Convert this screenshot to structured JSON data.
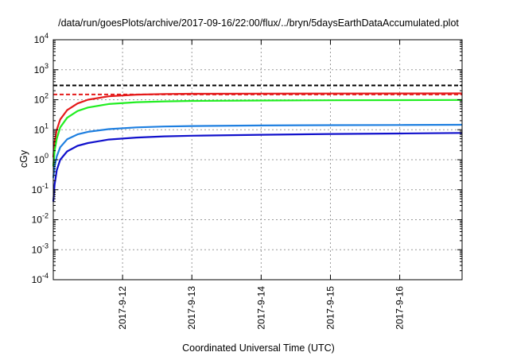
{
  "chart_data": {
    "type": "line",
    "title": "/data/run/goesPlots/archive/2017-09-16/22:00/flux/../bryn/5daysEarthDataAccumulated.plot",
    "xlabel": "Coordinated Universal Time (UTC)",
    "ylabel": "cGy",
    "yscale": "log",
    "ylim": [
      0.0001,
      10000
    ],
    "xlim": [
      0,
      5.9
    ],
    "x_unit": "days after 2017-09-11 00:00 UTC",
    "x_ticks": [
      {
        "x": 1,
        "label": "2017-9-12"
      },
      {
        "x": 2,
        "label": "2017-9-13"
      },
      {
        "x": 3,
        "label": "2017-9-14"
      },
      {
        "x": 4,
        "label": "2017-9-15"
      },
      {
        "x": 5,
        "label": "2017-9-16"
      }
    ],
    "y_ticks": [
      {
        "value": 0.0001,
        "base": "10",
        "exp": "-4"
      },
      {
        "value": 0.001,
        "base": "10",
        "exp": "-3"
      },
      {
        "value": 0.01,
        "base": "10",
        "exp": "-2"
      },
      {
        "value": 0.1,
        "base": "10",
        "exp": "-1"
      },
      {
        "value": 1,
        "base": "10",
        "exp": "0"
      },
      {
        "value": 10,
        "base": "10",
        "exp": "1"
      },
      {
        "value": 100,
        "base": "10",
        "exp": "2"
      },
      {
        "value": 1000,
        "base": "10",
        "exp": "3"
      },
      {
        "value": 10000,
        "base": "10",
        "exp": "4"
      }
    ],
    "grid": true,
    "series": [
      {
        "color": "#e41a1a",
        "points": [
          [
            0,
            1.2
          ],
          [
            0.02,
            4
          ],
          [
            0.05,
            10
          ],
          [
            0.1,
            22
          ],
          [
            0.2,
            45
          ],
          [
            0.35,
            75
          ],
          [
            0.5,
            100
          ],
          [
            0.8,
            130
          ],
          [
            1.2,
            148
          ],
          [
            1.6,
            155
          ],
          [
            2,
            158
          ],
          [
            3,
            160
          ],
          [
            4,
            161
          ],
          [
            5,
            162
          ],
          [
            5.9,
            163
          ]
        ]
      },
      {
        "color": "#22ee22",
        "points": [
          [
            0,
            0.6
          ],
          [
            0.02,
            2
          ],
          [
            0.05,
            5
          ],
          [
            0.1,
            12
          ],
          [
            0.2,
            25
          ],
          [
            0.35,
            42
          ],
          [
            0.5,
            55
          ],
          [
            0.8,
            72
          ],
          [
            1.2,
            83
          ],
          [
            1.6,
            88
          ],
          [
            2,
            91
          ],
          [
            3,
            94
          ],
          [
            4,
            96
          ],
          [
            5,
            97
          ],
          [
            5.9,
            98
          ]
        ]
      },
      {
        "color": "#1e7fe0",
        "points": [
          [
            0,
            0.25
          ],
          [
            0.02,
            0.6
          ],
          [
            0.05,
            1.3
          ],
          [
            0.1,
            2.6
          ],
          [
            0.2,
            4.8
          ],
          [
            0.35,
            7
          ],
          [
            0.5,
            8.5
          ],
          [
            0.8,
            10.5
          ],
          [
            1.2,
            12
          ],
          [
            1.6,
            12.8
          ],
          [
            2,
            13.3
          ],
          [
            3,
            13.9
          ],
          [
            4,
            14.2
          ],
          [
            5,
            14.4
          ],
          [
            5.9,
            14.6
          ]
        ]
      },
      {
        "color": "#1111cc",
        "points": [
          [
            0,
            0.04
          ],
          [
            0.02,
            0.15
          ],
          [
            0.05,
            0.45
          ],
          [
            0.1,
            1
          ],
          [
            0.2,
            1.9
          ],
          [
            0.35,
            2.9
          ],
          [
            0.5,
            3.6
          ],
          [
            0.8,
            4.7
          ],
          [
            1.2,
            5.5
          ],
          [
            1.6,
            6
          ],
          [
            2,
            6.3
          ],
          [
            3,
            6.8
          ],
          [
            4,
            7.2
          ],
          [
            5,
            7.5
          ],
          [
            5.9,
            7.8
          ]
        ]
      }
    ],
    "reference_lines": [
      {
        "value": 300,
        "color": "#000000",
        "style": "dashed"
      },
      {
        "value": 150,
        "color": "#e41a1a",
        "style": "dashed"
      }
    ]
  }
}
